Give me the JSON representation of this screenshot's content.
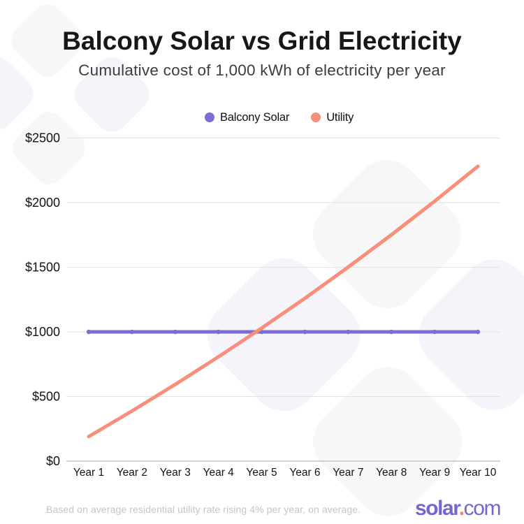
{
  "title": "Balcony Solar vs Grid Electricity",
  "subtitle": "Cumulative cost of 1,000 kWh of electricity per year",
  "legend": {
    "items": [
      {
        "label": "Balcony Solar",
        "color": "#7f6cd2"
      },
      {
        "label": "Utility",
        "color": "#f98e7b"
      }
    ]
  },
  "chart_data": {
    "type": "line",
    "title": "Balcony Solar vs Grid Electricity",
    "subtitle": "Cumulative cost of 1,000 kWh of electricity per year",
    "categories": [
      "Year 1",
      "Year 2",
      "Year 3",
      "Year 4",
      "Year 5",
      "Year 6",
      "Year 7",
      "Year 8",
      "Year 9",
      "Year 10"
    ],
    "series": [
      {
        "name": "Balcony Solar",
        "color": "#7f6cd2",
        "markers": true,
        "values": [
          1000,
          1000,
          1000,
          1000,
          1000,
          1000,
          1000,
          1000,
          1000,
          1000
        ]
      },
      {
        "name": "Utility",
        "color": "#f98e7b",
        "markers": false,
        "values": [
          190,
          388,
          593,
          807,
          1029,
          1260,
          1501,
          1751,
          2011,
          2281
        ]
      }
    ],
    "ylabel": "",
    "xlabel": "",
    "ylim": [
      0,
      2500
    ],
    "y_ticks": [
      0,
      500,
      1000,
      1500,
      2000,
      2500
    ],
    "y_tick_labels": [
      "$0",
      "$500",
      "$1000",
      "$1500",
      "$2000",
      "$2500"
    ],
    "grid": true,
    "legend_position": "top",
    "grid_color": "#e2e2e4",
    "axis_line_color": "#a8a8ab"
  },
  "footnote": "Based on average residential utility rate rising 4% per year, on average.",
  "logo": {
    "solar": "solar",
    "dot": ".",
    "com": "com",
    "purple": "#7566ce",
    "dot_color": "#f8806b"
  },
  "background": {
    "tile_gray": "#f7f7f8",
    "tile_lavender": "#f5f4fa"
  }
}
